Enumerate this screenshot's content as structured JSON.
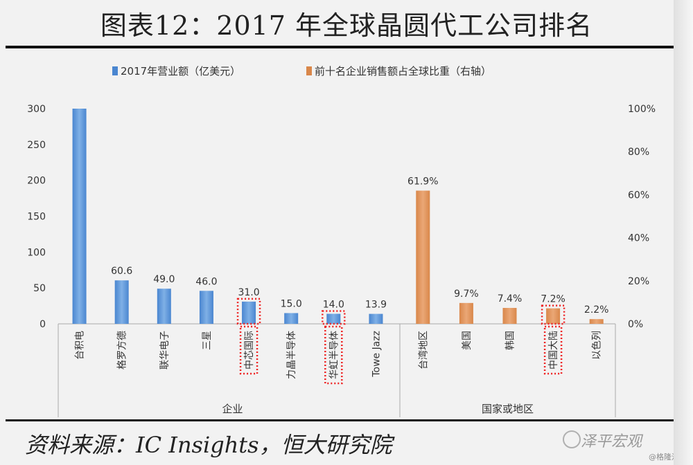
{
  "figure": {
    "title": "图表12：2017 年全球晶圆代工公司排名",
    "source": "资料来源：IC Insights，恒大研究院",
    "watermark": "泽平宏观",
    "platform_mark": "@格隆汇"
  },
  "chart_data": {
    "type": "bar",
    "legend_position": "top",
    "left_axis": {
      "ylim": [
        0,
        300
      ],
      "ticks": [
        "0",
        "50",
        "100",
        "150",
        "200",
        "250",
        "300"
      ]
    },
    "right_axis": {
      "ylim": [
        0,
        100
      ],
      "ticks": [
        "0%",
        "20%",
        "40%",
        "60%",
        "80%",
        "100%"
      ]
    },
    "grid": false,
    "groups": [
      {
        "label": "企业"
      },
      {
        "label": "国家或地区"
      }
    ],
    "series": [
      {
        "name": "2017年营业额（亿美元）",
        "color": "#4a86d0",
        "axis": "left",
        "categories": [
          "台积电",
          "格罗方德",
          "联华电子",
          "三星",
          "中芯国际",
          "力晶半导体",
          "华虹半导体",
          "Towe Jazz"
        ],
        "values": [
          321,
          60.6,
          49.0,
          46.0,
          31.0,
          15.0,
          14.0,
          13.9
        ],
        "labels": [
          "",
          "60.6",
          "49.0",
          "46.0",
          "31.0",
          "15.0",
          "14.0",
          "13.9"
        ],
        "highlighted": [
          "中芯国际",
          "华虹半导体"
        ]
      },
      {
        "name": "前十名企业销售额占全球比重（右轴）",
        "color": "#d9874a",
        "axis": "right",
        "categories": [
          "台湾地区",
          "美国",
          "韩国",
          "中国大陆",
          "以色列"
        ],
        "values": [
          61.9,
          9.7,
          7.4,
          7.2,
          2.2
        ],
        "labels": [
          "61.9%",
          "9.7%",
          "7.4%",
          "7.2%",
          "2.2%"
        ],
        "highlighted": [
          "中国大陆"
        ]
      }
    ]
  }
}
